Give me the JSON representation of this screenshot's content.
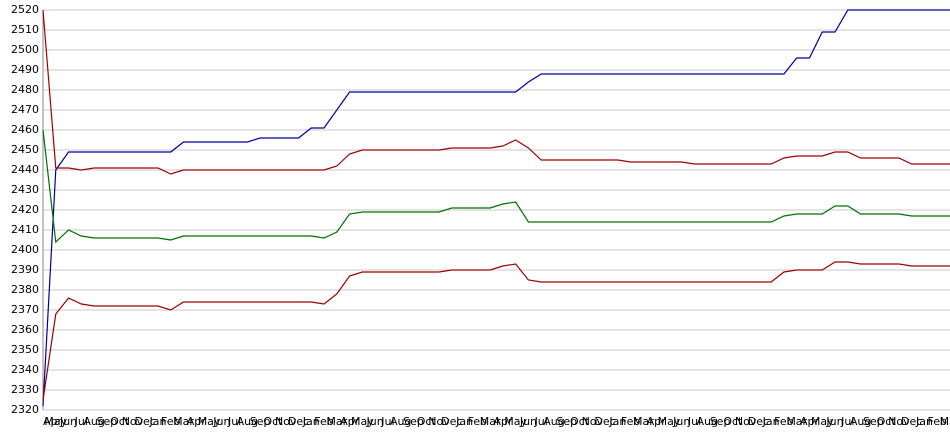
{
  "chart_data": {
    "type": "line",
    "categories": [
      "Apr",
      "May",
      "Jun",
      "Jul",
      "Aug",
      "Sep",
      "Oct",
      "Nov",
      "Dec",
      "Jan",
      "Feb",
      "Mar",
      "Apr",
      "May",
      "Jun",
      "Jul",
      "Aug",
      "Sep",
      "Oct",
      "Nov",
      "Dec",
      "Jan",
      "Feb",
      "Mar",
      "Apr",
      "May",
      "Jun",
      "Jul",
      "Aug",
      "Sep",
      "Oct",
      "Nov",
      "Dec",
      "Jan",
      "Feb",
      "Mar",
      "Apr",
      "May",
      "Jun",
      "Jul",
      "Aug",
      "Sep",
      "Oct",
      "Nov",
      "Dec",
      "Jan",
      "Feb",
      "Mar",
      "Apr",
      "May",
      "Jun",
      "Jul",
      "Aug",
      "Sep",
      "Oct",
      "Nov",
      "Dec",
      "Jan",
      "Feb",
      "Mar",
      "Apr",
      "May",
      "Jun",
      "Jul",
      "Aug",
      "Sep",
      "Oct",
      "Nov",
      "Dec",
      "Jan",
      "Feb",
      "Mar"
    ],
    "series": [
      {
        "color": "#0000a0",
        "values": [
          2322,
          2440,
          2449,
          2449,
          2449,
          2449,
          2449,
          2449,
          2449,
          2449,
          2449,
          2454,
          2454,
          2454,
          2454,
          2454,
          2454,
          2456,
          2456,
          2456,
          2456,
          2461,
          2461,
          2470,
          2479,
          2479,
          2479,
          2479,
          2479,
          2479,
          2479,
          2479,
          2479,
          2479,
          2479,
          2479,
          2479,
          2479,
          2484,
          2488,
          2488,
          2488,
          2488,
          2488,
          2488,
          2488,
          2488,
          2488,
          2488,
          2488,
          2488,
          2488,
          2488,
          2488,
          2488,
          2488,
          2488,
          2488,
          2488,
          2496,
          2496,
          2509,
          2509,
          2520,
          2520,
          2520,
          2520,
          2520,
          2520,
          2520,
          2520,
          2520
        ]
      },
      {
        "color": "#a00000",
        "values": [
          2520,
          2441,
          2441,
          2440,
          2441,
          2441,
          2441,
          2441,
          2441,
          2441,
          2438,
          2440,
          2440,
          2440,
          2440,
          2440,
          2440,
          2440,
          2440,
          2440,
          2440,
          2440,
          2440,
          2442,
          2448,
          2450,
          2450,
          2450,
          2450,
          2450,
          2450,
          2450,
          2451,
          2451,
          2451,
          2451,
          2452,
          2455,
          2451,
          2445,
          2445,
          2445,
          2445,
          2445,
          2445,
          2445,
          2444,
          2444,
          2444,
          2444,
          2444,
          2443,
          2443,
          2443,
          2443,
          2443,
          2443,
          2443,
          2446,
          2447,
          2447,
          2447,
          2449,
          2449,
          2446,
          2446,
          2446,
          2446,
          2443,
          2443,
          2443,
          2443
        ]
      },
      {
        "color": "#007000",
        "values": [
          2460,
          2404,
          2410,
          2407,
          2406,
          2406,
          2406,
          2406,
          2406,
          2406,
          2405,
          2407,
          2407,
          2407,
          2407,
          2407,
          2407,
          2407,
          2407,
          2407,
          2407,
          2407,
          2406,
          2409,
          2418,
          2419,
          2419,
          2419,
          2419,
          2419,
          2419,
          2419,
          2421,
          2421,
          2421,
          2421,
          2423,
          2424,
          2414,
          2414,
          2414,
          2414,
          2414,
          2414,
          2414,
          2414,
          2414,
          2414,
          2414,
          2414,
          2414,
          2414,
          2414,
          2414,
          2414,
          2414,
          2414,
          2414,
          2417,
          2418,
          2418,
          2418,
          2422,
          2422,
          2418,
          2418,
          2418,
          2418,
          2417,
          2417,
          2417,
          2417
        ]
      },
      {
        "color": "#a00000",
        "values": [
          2325,
          2368,
          2376,
          2373,
          2372,
          2372,
          2372,
          2372,
          2372,
          2372,
          2370,
          2374,
          2374,
          2374,
          2374,
          2374,
          2374,
          2374,
          2374,
          2374,
          2374,
          2374,
          2373,
          2378,
          2387,
          2389,
          2389,
          2389,
          2389,
          2389,
          2389,
          2389,
          2390,
          2390,
          2390,
          2390,
          2392,
          2393,
          2385,
          2384,
          2384,
          2384,
          2384,
          2384,
          2384,
          2384,
          2384,
          2384,
          2384,
          2384,
          2384,
          2384,
          2384,
          2384,
          2384,
          2384,
          2384,
          2384,
          2389,
          2390,
          2390,
          2390,
          2394,
          2394,
          2393,
          2393,
          2393,
          2393,
          2392,
          2392,
          2392,
          2392
        ]
      }
    ],
    "ylim": [
      2320,
      2520
    ],
    "yticks": [
      2320,
      2330,
      2340,
      2350,
      2360,
      2370,
      2380,
      2390,
      2400,
      2410,
      2420,
      2430,
      2440,
      2450,
      2460,
      2470,
      2480,
      2490,
      2500,
      2510,
      2520
    ],
    "grid": true
  }
}
